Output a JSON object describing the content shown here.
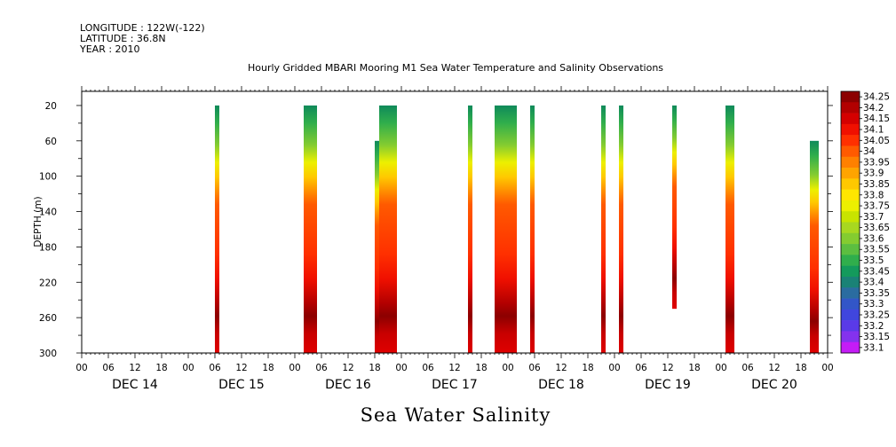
{
  "header": {
    "longitude": "LONGITUDE : 122W(-122)",
    "latitude": "LATITUDE : 36.8N",
    "year": "YEAR : 2010"
  },
  "chart_data": {
    "type": "heatmap",
    "title": "Hourly Gridded MBARI Mooring M1 Sea Water Temperature and Salinity Observations",
    "ylabel": "DEPTH (m)",
    "variable_label": "Sea Water Salinity",
    "ylim": [
      300,
      4
    ],
    "y_ticks": [
      20,
      60,
      100,
      140,
      180,
      220,
      260,
      300
    ],
    "x_hour_ticks": [
      "00",
      "06",
      "12",
      "18",
      "00",
      "06",
      "12",
      "18",
      "00",
      "06",
      "12",
      "18",
      "00",
      "06",
      "12",
      "18",
      "00",
      "06",
      "12",
      "18",
      "00",
      "06",
      "12",
      "18",
      "00",
      "06",
      "12",
      "18",
      "00"
    ],
    "x_days": [
      "DEC 14",
      "DEC 15",
      "DEC 16",
      "DEC 17",
      "DEC 18",
      "DEC 19",
      "DEC 20"
    ],
    "x_range_hours": [
      0,
      168
    ],
    "colorbar": {
      "levels": [
        "34.25",
        "34.2",
        "34.15",
        "34.1",
        "34.05",
        "34",
        "33.95",
        "33.9",
        "33.85",
        "33.8",
        "33.75",
        "33.7",
        "33.65",
        "33.6",
        "33.55",
        "33.5",
        "33.45",
        "33.4",
        "33.35",
        "33.3",
        "33.25",
        "33.2",
        "33.15",
        "33.1"
      ],
      "colors": [
        "#8c0000",
        "#b20000",
        "#d40000",
        "#f01000",
        "#ff3000",
        "#ff5a00",
        "#ff8000",
        "#ffa400",
        "#ffc800",
        "#ffe600",
        "#ecf000",
        "#c8e400",
        "#a8d820",
        "#84cc30",
        "#5cbe40",
        "#30ae4c",
        "#149a5c",
        "#1a8276",
        "#2a6ca0",
        "#3256c8",
        "#4046de",
        "#5a3ae8",
        "#8432ee",
        "#c41cf6"
      ]
    },
    "columns": [
      {
        "start_hour": 30,
        "end_hour": 31,
        "top_depth": 20,
        "bottom_depth": 300
      },
      {
        "start_hour": 50,
        "end_hour": 53,
        "top_depth": 20,
        "bottom_depth": 300
      },
      {
        "start_hour": 66,
        "end_hour": 67,
        "top_depth": 60,
        "bottom_depth": 300
      },
      {
        "start_hour": 67,
        "end_hour": 71,
        "top_depth": 20,
        "bottom_depth": 300
      },
      {
        "start_hour": 87,
        "end_hour": 88,
        "top_depth": 20,
        "bottom_depth": 300
      },
      {
        "start_hour": 93,
        "end_hour": 98,
        "top_depth": 20,
        "bottom_depth": 300
      },
      {
        "start_hour": 101,
        "end_hour": 102,
        "top_depth": 20,
        "bottom_depth": 300
      },
      {
        "start_hour": 117,
        "end_hour": 118,
        "top_depth": 20,
        "bottom_depth": 300
      },
      {
        "start_hour": 121,
        "end_hour": 122,
        "top_depth": 20,
        "bottom_depth": 300
      },
      {
        "start_hour": 133,
        "end_hour": 134,
        "top_depth": 20,
        "bottom_depth": 250
      },
      {
        "start_hour": 145,
        "end_hour": 147,
        "top_depth": 20,
        "bottom_depth": 300
      },
      {
        "start_hour": 164,
        "end_hour": 166,
        "top_depth": 60,
        "bottom_depth": 300
      }
    ]
  }
}
